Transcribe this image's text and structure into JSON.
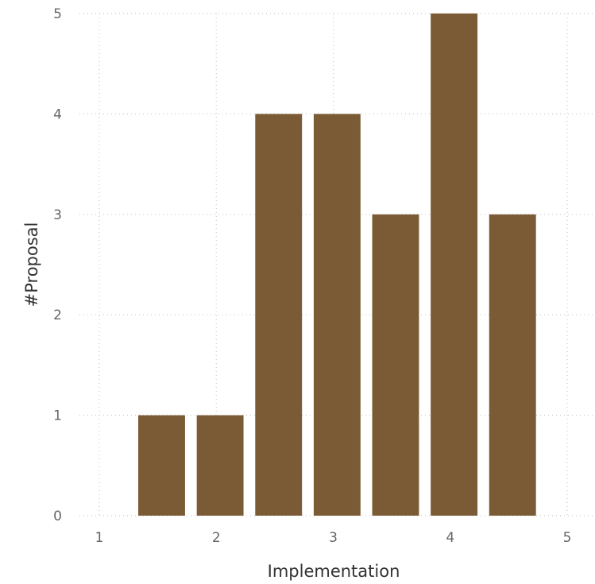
{
  "chart_data": {
    "type": "bar",
    "title": "",
    "xlabel": "Implementation",
    "ylabel": "#Proposal",
    "xlim": [
      1,
      5
    ],
    "ylim": [
      0,
      5
    ],
    "x_ticks": [
      "1",
      "2",
      "3",
      "4",
      "5"
    ],
    "y_ticks": [
      "0",
      "1",
      "2",
      "3",
      "4",
      "5"
    ],
    "bins": [
      {
        "from": 1.333,
        "to": 1.733,
        "value": 1
      },
      {
        "from": 1.833,
        "to": 2.233,
        "value": 1
      },
      {
        "from": 2.333,
        "to": 2.733,
        "value": 4
      },
      {
        "from": 2.833,
        "to": 3.233,
        "value": 4
      },
      {
        "from": 3.333,
        "to": 3.733,
        "value": 3
      },
      {
        "from": 3.833,
        "to": 4.233,
        "value": 5
      },
      {
        "from": 4.333,
        "to": 4.733,
        "value": 3
      }
    ],
    "bar_color": "#7b5b35",
    "grid": true,
    "legend": "none"
  }
}
